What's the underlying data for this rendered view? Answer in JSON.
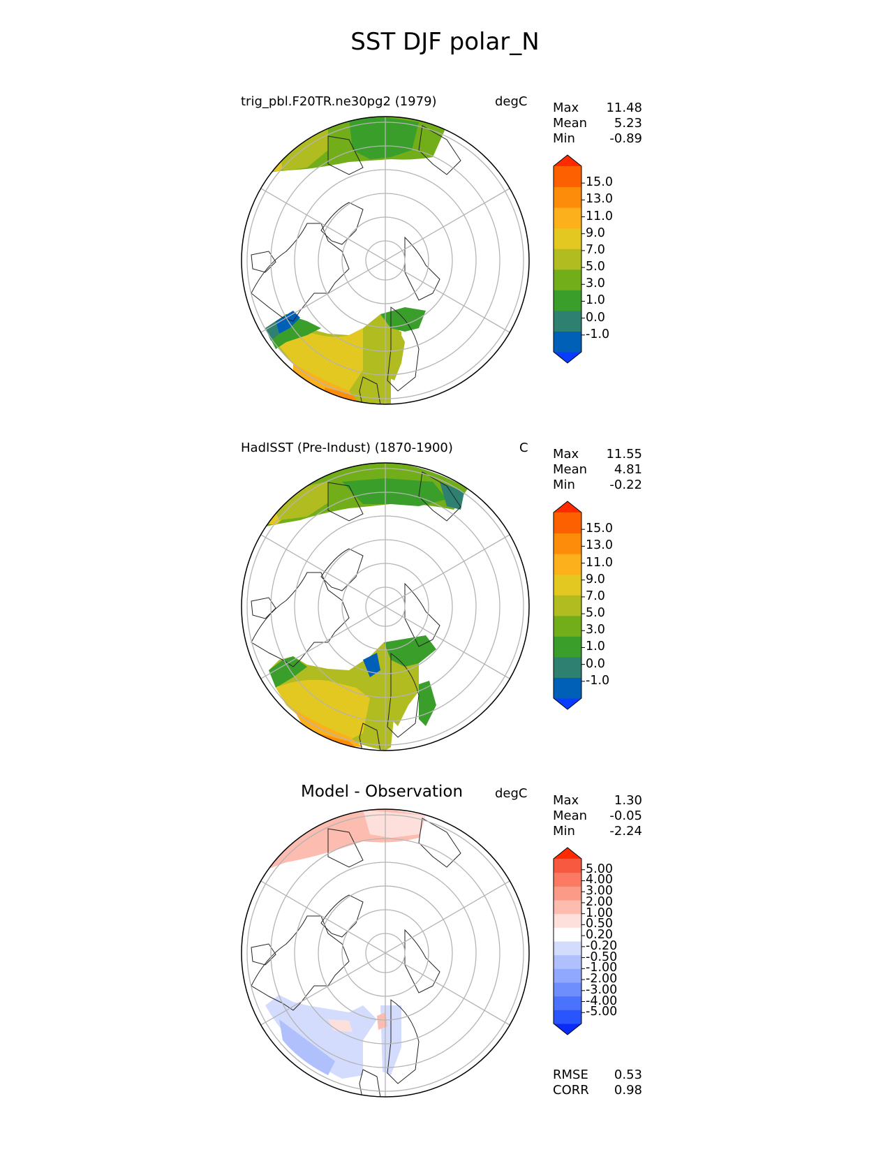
{
  "figure": {
    "title": "SST DJF polar_N"
  },
  "colors": {
    "land": "#ffffff",
    "coast": "#222222",
    "grid": "#b4b4b4",
    "colorbar_abs": [
      "#0a3cff",
      "#0060b8",
      "#2e8070",
      "#3a9e2a",
      "#72ae1a",
      "#b0bc20",
      "#e4c822",
      "#fcb01c",
      "#fd8c0a",
      "#fd6000",
      "#ff2a00"
    ],
    "colorbar_diff": [
      "#0a2cf6",
      "#2a55fd",
      "#4a72fd",
      "#6e8efd",
      "#90a8fd",
      "#b0c0fd",
      "#d4dcfd",
      "#ffffff",
      "#fde0dc",
      "#fdbcb0",
      "#fc9a88",
      "#fc7a64",
      "#f65840",
      "#ff2a00"
    ]
  },
  "panels": [
    {
      "name": "test",
      "title": "trig_pbl.F20TR.ne30pg2 (1979)",
      "units": "degC",
      "stats": [
        {
          "label": "Max",
          "value": "11.48"
        },
        {
          "label": "Mean",
          "value": "5.23"
        },
        {
          "label": "Min",
          "value": "-0.89"
        }
      ],
      "colorbar_ticks": [
        "15.0",
        "13.0",
        "11.0",
        "9.0",
        "7.0",
        "5.0",
        "3.0",
        "1.0",
        "0.0",
        "-1.0"
      ]
    },
    {
      "name": "reference",
      "title": "HadISST (Pre-Indust) (1870-1900)",
      "units": "C",
      "stats": [
        {
          "label": "Max",
          "value": "11.55"
        },
        {
          "label": "Mean",
          "value": "4.81"
        },
        {
          "label": "Min",
          "value": "-0.22"
        }
      ],
      "colorbar_ticks": [
        "15.0",
        "13.0",
        "11.0",
        "9.0",
        "7.0",
        "5.0",
        "3.0",
        "1.0",
        "0.0",
        "-1.0"
      ]
    },
    {
      "name": "difference",
      "title": "Model - Observation",
      "units": "degC",
      "stats": [
        {
          "label": "Max",
          "value": "1.30"
        },
        {
          "label": "Mean",
          "value": "-0.05"
        },
        {
          "label": "Min",
          "value": "-2.24"
        }
      ],
      "colorbar_ticks": [
        "5.00",
        "4.00",
        "3.00",
        "2.00",
        "1.00",
        "0.50",
        "0.20",
        "-0.20",
        "-0.50",
        "-1.00",
        "-2.00",
        "-3.00",
        "-4.00",
        "-5.00"
      ],
      "metrics": [
        {
          "label": "RMSE",
          "value": "0.53"
        },
        {
          "label": "CORR",
          "value": "0.98"
        }
      ]
    }
  ]
}
